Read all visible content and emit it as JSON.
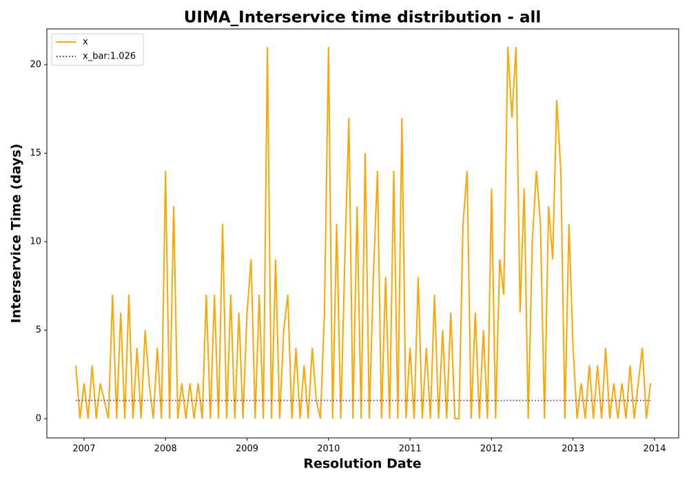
{
  "chart_data": {
    "type": "line",
    "title": "UIMA_Interservice time distribution - all",
    "xlabel": "Resolution Date",
    "ylabel": "Interservice Time (days)",
    "xlim": [
      2006.544,
      2014.296
    ],
    "ylim": [
      -1.09,
      22.02
    ],
    "xticks": [
      2007,
      2008,
      2009,
      2010,
      2011,
      2012,
      2013,
      2014
    ],
    "yticks": [
      0,
      5,
      10,
      15,
      20
    ],
    "legend": "upper left",
    "series": [
      {
        "name": "x",
        "color": "#ffa500",
        "style": "solid",
        "x": [
          2006.9,
          2006.95,
          2007,
          2007.05,
          2007.1,
          2007.15,
          2007.2,
          2007.25,
          2007.3,
          2007.35,
          2007.4,
          2007.45,
          2007.5,
          2007.55,
          2007.6,
          2007.65,
          2007.7,
          2007.75,
          2007.8,
          2007.85,
          2007.9,
          2007.95,
          2008,
          2008.05,
          2008.1,
          2008.15,
          2008.2,
          2008.25,
          2008.3,
          2008.35,
          2008.4,
          2008.45,
          2008.5,
          2008.55,
          2008.6,
          2008.65,
          2008.7,
          2008.75,
          2008.8,
          2008.85,
          2008.9,
          2008.95,
          2009,
          2009.05,
          2009.1,
          2009.15,
          2009.2,
          2009.25,
          2009.3,
          2009.35,
          2009.4,
          2009.45,
          2009.5,
          2009.55,
          2009.6,
          2009.65,
          2009.7,
          2009.75,
          2009.8,
          2009.85,
          2009.9,
          2009.95,
          2010,
          2010.05,
          2010.1,
          2010.15,
          2010.2,
          2010.25,
          2010.3,
          2010.35,
          2010.4,
          2010.45,
          2010.5,
          2010.55,
          2010.6,
          2010.65,
          2010.7,
          2010.75,
          2010.8,
          2010.85,
          2010.9,
          2010.95,
          2011,
          2011.05,
          2011.1,
          2011.15,
          2011.2,
          2011.25,
          2011.3,
          2011.35,
          2011.4,
          2011.45,
          2011.5,
          2011.55,
          2011.6,
          2011.65,
          2011.7,
          2011.75,
          2011.8,
          2011.85,
          2011.9,
          2011.95,
          2012,
          2012.05,
          2012.1,
          2012.15,
          2012.2,
          2012.25,
          2012.3,
          2012.35,
          2012.4,
          2012.45,
          2012.5,
          2012.55,
          2012.6,
          2012.65,
          2012.7,
          2012.75,
          2012.8,
          2012.85,
          2012.9,
          2012.95,
          2013,
          2013.05,
          2013.1,
          2013.15,
          2013.2,
          2013.25,
          2013.3,
          2013.35,
          2013.4,
          2013.45,
          2013.5,
          2013.55,
          2013.6,
          2013.65,
          2013.7,
          2013.75,
          2013.8,
          2013.85,
          2013.9,
          2013.95
        ],
        "values": [
          3,
          0,
          2,
          0,
          3,
          0,
          2,
          1,
          0,
          7,
          0,
          6,
          0,
          7,
          0,
          4,
          0,
          5,
          2,
          0,
          4,
          0,
          14,
          0,
          12,
          0,
          2,
          0,
          2,
          0,
          2,
          0,
          7,
          0,
          7,
          0,
          11,
          0,
          7,
          0,
          6,
          0,
          6,
          9,
          0,
          7,
          0,
          21,
          0,
          9,
          0,
          5,
          7,
          0,
          4,
          0,
          3,
          0,
          4,
          1,
          0,
          6,
          21,
          0,
          11,
          0,
          9,
          17,
          0,
          12,
          0,
          15,
          0,
          8,
          14,
          0,
          8,
          0,
          14,
          0,
          17,
          0,
          4,
          0,
          8,
          0,
          4,
          0,
          7,
          0,
          5,
          0,
          6,
          0,
          0,
          11,
          14,
          0,
          6,
          0,
          5,
          0,
          13,
          0,
          9,
          7,
          21,
          17,
          21,
          6,
          13,
          0,
          10,
          14,
          11,
          0,
          12,
          9,
          18,
          14,
          0,
          11,
          4,
          0,
          2,
          0,
          3,
          0,
          3,
          0,
          4,
          0,
          2,
          0,
          2,
          0,
          3,
          0,
          2,
          4,
          0,
          2
        ]
      },
      {
        "name": "x_bar:1.026",
        "color": "#800080",
        "style": "dotted",
        "x": [
          2006.9,
          2013.95
        ],
        "values": [
          1.026,
          1.026
        ]
      }
    ]
  }
}
